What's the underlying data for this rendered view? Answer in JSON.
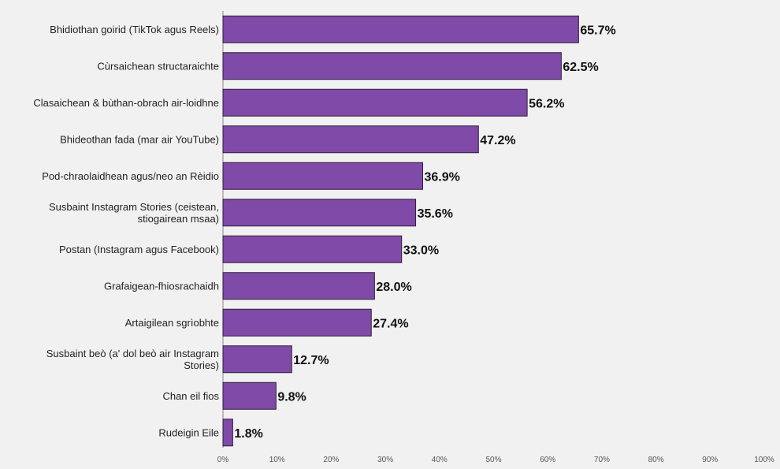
{
  "chart_data": {
    "type": "bar",
    "orientation": "horizontal",
    "categories": [
      "Bhidiothan goirid (TikTok agus Reels)",
      "Cùrsaichean structaraichte",
      "Clasaichean & bùthan-obrach air-loidhne",
      "Bhideothan fada (mar air YouTube)",
      "Pod-chraolaidhean agus/neo an Rèidio",
      "Susbaint Instagram Stories (ceistean, stiogairean msaa)",
      "Postan (Instagram agus Facebook)",
      "Grafaigean-fhiosrachaidh",
      "Artaigilean sgrìobhte",
      "Susbaint beò (a' dol beò air Instagram Stories)",
      "Chan eil fios",
      "Rudeigin Eile"
    ],
    "category_lines": [
      [
        "Bhidiothan goirid (TikTok agus Reels)"
      ],
      [
        "Cùrsaichean structaraichte"
      ],
      [
        "Clasaichean & bùthan-obrach air-loidhne"
      ],
      [
        "Bhideothan fada (mar air YouTube)"
      ],
      [
        "Pod-chraolaidhean agus/neo an Rèidio"
      ],
      [
        "Susbaint Instagram Stories (ceistean,",
        "stiogairean msaa)"
      ],
      [
        "Postan (Instagram agus Facebook)"
      ],
      [
        "Grafaigean-fhiosrachaidh"
      ],
      [
        "Artaigilean sgrìobhte"
      ],
      [
        "Susbaint beò (a' dol beò air Instagram",
        "Stories)"
      ],
      [
        "Chan eil fios"
      ],
      [
        "Rudeigin Eile"
      ]
    ],
    "values": [
      65.7,
      62.5,
      56.2,
      47.2,
      36.9,
      35.6,
      33.0,
      28.0,
      27.4,
      12.7,
      9.8,
      1.8
    ],
    "value_labels": [
      "65.7%",
      "62.5%",
      "56.2%",
      "47.2%",
      "36.9%",
      "35.6%",
      "33.0%",
      "28.0%",
      "27.4%",
      "12.7%",
      "9.8%",
      "1.8%"
    ],
    "xlim": [
      0,
      100
    ],
    "x_ticks": [
      "0%",
      "10%",
      "20%",
      "30%",
      "40%",
      "50%",
      "60%",
      "70%",
      "80%",
      "90%",
      "100%"
    ],
    "title": "",
    "xlabel": "",
    "ylabel": "",
    "grid": false,
    "legend": "none",
    "colors": {
      "bar": "#7f4aa8",
      "bar_edge": "#2e1d3b",
      "axis": "#888888",
      "tick_label": "#555555",
      "category_label": "#222222",
      "value_label": "#111111",
      "background": "#f1f1f1"
    }
  }
}
